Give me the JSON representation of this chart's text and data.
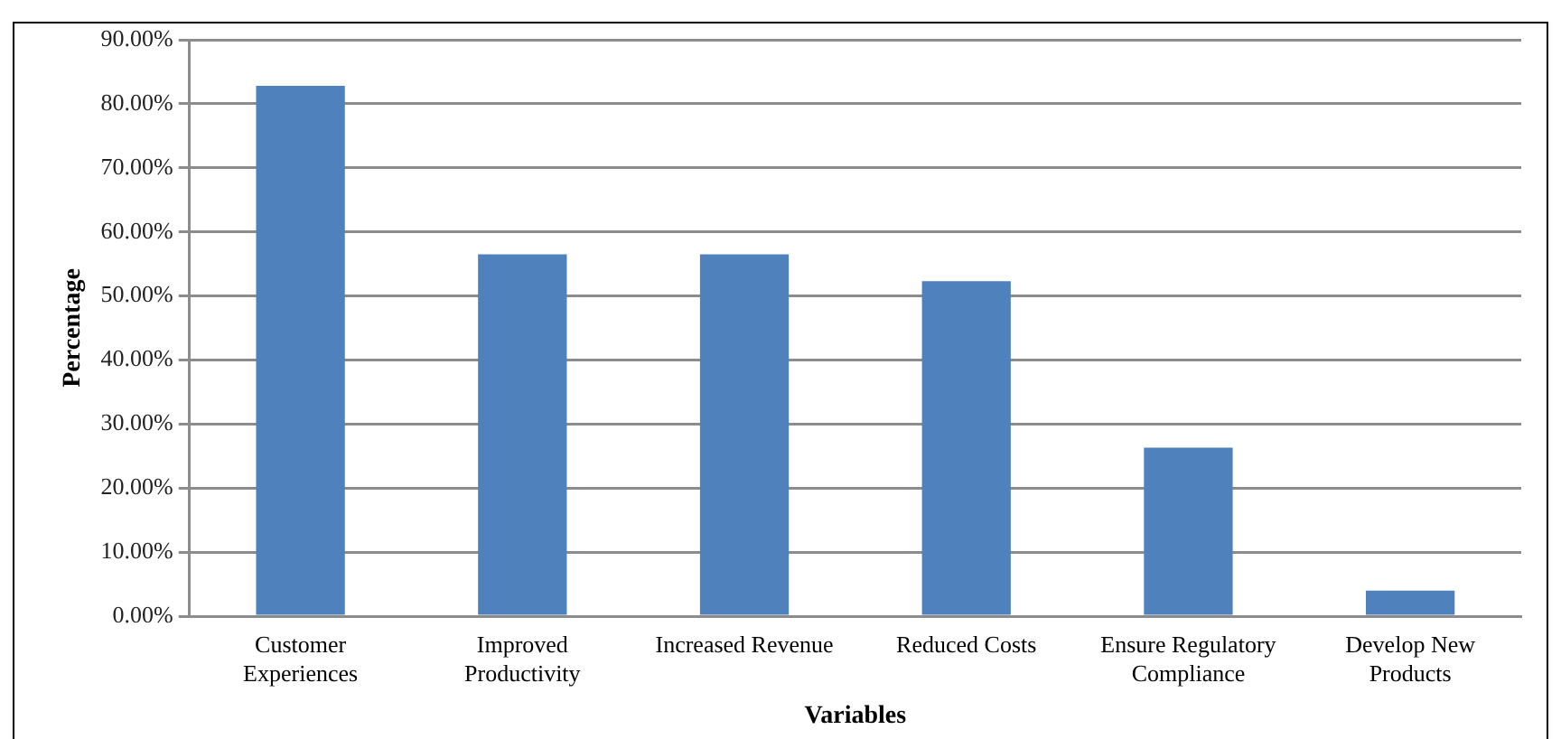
{
  "chart_data": {
    "type": "bar",
    "xlabel": "Variables",
    "ylabel": "Percentage",
    "categories": [
      "Customer Experiences",
      "Improved Productivity",
      "Increased Revenue",
      "Reduced Costs",
      "Ensure Regulatory Compliance",
      "Develop New Products"
    ],
    "values": [
      82.8,
      56.5,
      56.5,
      52.3,
      26.3,
      4.0
    ],
    "color": "#4f81bd",
    "ylim": [
      0,
      90
    ],
    "yticks": [
      {
        "value": 0,
        "label": "0.00%"
      },
      {
        "value": 10,
        "label": "10.00%"
      },
      {
        "value": 20,
        "label": "20.00%"
      },
      {
        "value": 30,
        "label": "30.00%"
      },
      {
        "value": 40,
        "label": "40.00%"
      },
      {
        "value": 50,
        "label": "50.00%"
      },
      {
        "value": 60,
        "label": "60.00%"
      },
      {
        "value": 70,
        "label": "70.00%"
      },
      {
        "value": 80,
        "label": "80.00%"
      },
      {
        "value": 90,
        "label": "90.00%"
      }
    ],
    "grid": "y",
    "legend": false
  }
}
